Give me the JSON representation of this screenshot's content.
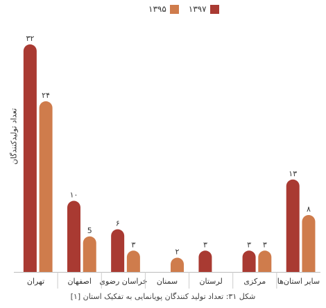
{
  "chart_data": {
    "type": "bar",
    "title": "",
    "caption": "شکل ۳۱: تعداد تولید کنندگان پویانمایی به تفکیک استان [۱]",
    "ylabel": "تعداد تولیدکنندگان",
    "xlabel": "",
    "ylim": [
      0,
      35
    ],
    "grid": false,
    "legend_position": "top",
    "categories": [
      "تهران",
      "اصفهان",
      "خراسان رضوی",
      "سمنان",
      "لرستان",
      "مرکزی",
      "سایر استان‌ها"
    ],
    "series": [
      {
        "name": "۱۳۹۷",
        "color": "#a93a32",
        "values": [
          32,
          10,
          6,
          null,
          3,
          3,
          13
        ],
        "labels": [
          "۳۲",
          "۱۰",
          "۶",
          "",
          "۳",
          "۳",
          "۱۳"
        ]
      },
      {
        "name": "۱۳۹۵",
        "color": "#cf7c4c",
        "values": [
          24,
          5,
          3,
          2,
          null,
          3,
          8
        ],
        "labels": [
          "۲۴",
          "5",
          "۳",
          "۲",
          "",
          "۳",
          "۸"
        ]
      }
    ]
  }
}
